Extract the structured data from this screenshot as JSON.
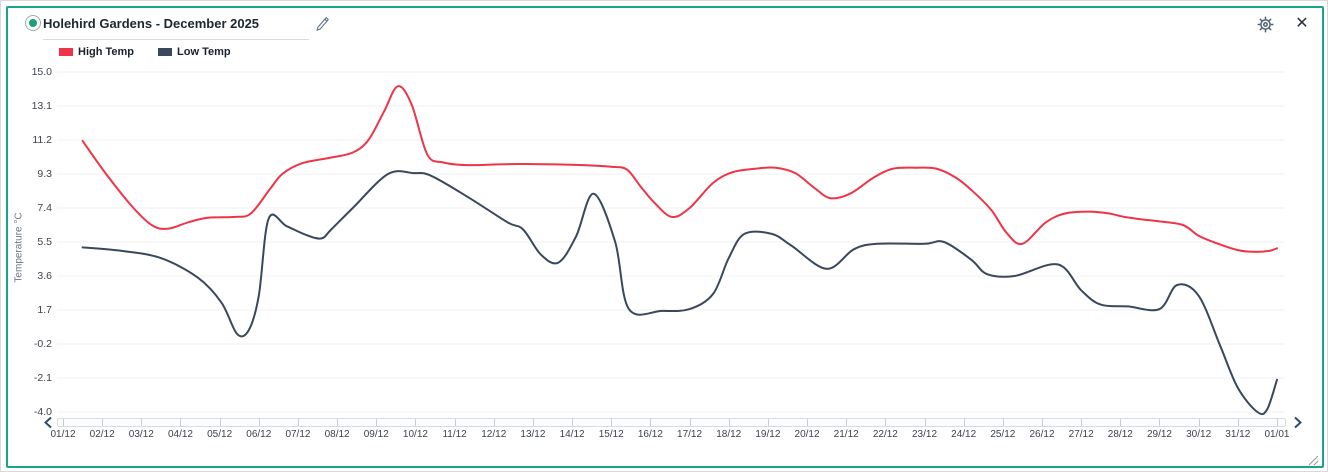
{
  "header": {
    "title": "Holehird Gardens - December 2025",
    "status_icon": {
      "name": "status-dot-icon",
      "ring_color": "#9aada8",
      "dot_color": "#18a07d"
    },
    "edit_icon": "pencil-icon",
    "settings_icon": "gear-icon",
    "close_icon": "close-icon"
  },
  "nav": {
    "prev_icon": "chevron-left-icon",
    "next_icon": "chevron-right-icon",
    "resize_icon": "resize-grip-icon"
  },
  "colors": {
    "card_border": "#17a68b",
    "grid_line": "#f0f0f0",
    "high_series": "#ee3548",
    "low_series": "#39485c",
    "axis_track": "#d5dbe8"
  },
  "chart_data": {
    "type": "line",
    "title": "Holehird Gardens - December 2025",
    "xlabel": "",
    "ylabel": "Temperature °C",
    "ylim": [
      -4.0,
      15.0
    ],
    "y_ticks": [
      15.0,
      13.1,
      11.2,
      9.3,
      7.4,
      5.5,
      3.6,
      1.7,
      -0.2,
      -2.1,
      -4.0
    ],
    "x_tick_labels": [
      "01/12",
      "02/12",
      "03/12",
      "04/12",
      "05/12",
      "06/12",
      "07/12",
      "08/12",
      "09/12",
      "10/12",
      "11/12",
      "12/12",
      "13/12",
      "14/12",
      "15/12",
      "16/12",
      "17/12",
      "18/12",
      "19/12",
      "20/12",
      "21/12",
      "22/12",
      "23/12",
      "24/12",
      "25/12",
      "26/12",
      "27/12",
      "28/12",
      "29/12",
      "30/12",
      "31/12",
      "01/01"
    ],
    "grid": "horizontal-only",
    "legend_position": "top-left",
    "x_unit": "day of month (1 = 01/12 tick, 32 = 01/01 tick; fractional x = intra-day curve samples read from plot)",
    "series": [
      {
        "name": "High Temp",
        "color": "#ee3548",
        "points": [
          [
            1.5,
            11.15
          ],
          [
            2.1,
            9.3
          ],
          [
            2.8,
            7.4
          ],
          [
            3.3,
            6.4
          ],
          [
            3.7,
            6.25
          ],
          [
            4.2,
            6.6
          ],
          [
            4.7,
            6.85
          ],
          [
            5.4,
            6.9
          ],
          [
            5.8,
            7.1
          ],
          [
            6.3,
            8.5
          ],
          [
            6.6,
            9.3
          ],
          [
            7.1,
            9.9
          ],
          [
            7.8,
            10.2
          ],
          [
            8.4,
            10.5
          ],
          [
            8.8,
            11.2
          ],
          [
            9.2,
            12.8
          ],
          [
            9.55,
            14.2
          ],
          [
            9.9,
            13.2
          ],
          [
            10.3,
            10.4
          ],
          [
            10.7,
            9.95
          ],
          [
            11.3,
            9.8
          ],
          [
            12.3,
            9.85
          ],
          [
            13.3,
            9.85
          ],
          [
            14.3,
            9.8
          ],
          [
            15.0,
            9.7
          ],
          [
            15.4,
            9.55
          ],
          [
            15.75,
            8.6
          ],
          [
            16.1,
            7.7
          ],
          [
            16.55,
            6.9
          ],
          [
            17.0,
            7.4
          ],
          [
            17.6,
            8.8
          ],
          [
            18.1,
            9.4
          ],
          [
            18.7,
            9.6
          ],
          [
            19.2,
            9.65
          ],
          [
            19.7,
            9.35
          ],
          [
            20.2,
            8.5
          ],
          [
            20.6,
            7.95
          ],
          [
            21.1,
            8.2
          ],
          [
            21.7,
            9.1
          ],
          [
            22.2,
            9.6
          ],
          [
            22.8,
            9.65
          ],
          [
            23.3,
            9.6
          ],
          [
            23.8,
            9.1
          ],
          [
            24.2,
            8.4
          ],
          [
            24.7,
            7.3
          ],
          [
            25.1,
            6.0
          ],
          [
            25.5,
            5.4
          ],
          [
            26.1,
            6.6
          ],
          [
            26.6,
            7.1
          ],
          [
            27.2,
            7.2
          ],
          [
            27.7,
            7.1
          ],
          [
            28.1,
            6.9
          ],
          [
            28.6,
            6.75
          ],
          [
            29.0,
            6.65
          ],
          [
            29.6,
            6.45
          ],
          [
            30.0,
            5.85
          ],
          [
            30.5,
            5.4
          ],
          [
            31.0,
            5.05
          ],
          [
            31.4,
            4.95
          ],
          [
            31.8,
            5.0
          ],
          [
            32,
            5.15
          ]
        ]
      },
      {
        "name": "Low Temp",
        "color": "#39485c",
        "points": [
          [
            1.5,
            5.2
          ],
          [
            2.5,
            5.0
          ],
          [
            3.5,
            4.6
          ],
          [
            4.45,
            3.5
          ],
          [
            5.05,
            2.1
          ],
          [
            5.45,
            0.35
          ],
          [
            5.75,
            0.6
          ],
          [
            6.0,
            2.5
          ],
          [
            6.25,
            6.8
          ],
          [
            6.7,
            6.4
          ],
          [
            7.2,
            5.9
          ],
          [
            7.6,
            5.7
          ],
          [
            7.85,
            6.2
          ],
          [
            8.4,
            7.4
          ],
          [
            9.3,
            9.3
          ],
          [
            9.95,
            9.35
          ],
          [
            10.4,
            9.2
          ],
          [
            11.35,
            8.0
          ],
          [
            12.35,
            6.6
          ],
          [
            12.75,
            6.2
          ],
          [
            13.2,
            4.8
          ],
          [
            13.65,
            4.35
          ],
          [
            14.1,
            5.8
          ],
          [
            14.55,
            8.2
          ],
          [
            15.1,
            5.5
          ],
          [
            15.45,
            1.75
          ],
          [
            16.3,
            1.65
          ],
          [
            17.0,
            1.75
          ],
          [
            17.6,
            2.6
          ],
          [
            18.0,
            4.6
          ],
          [
            18.4,
            5.95
          ],
          [
            19.1,
            5.95
          ],
          [
            19.6,
            5.3
          ],
          [
            20.5,
            4.0
          ],
          [
            21.2,
            5.1
          ],
          [
            21.8,
            5.4
          ],
          [
            23.0,
            5.4
          ],
          [
            23.5,
            5.5
          ],
          [
            24.2,
            4.5
          ],
          [
            24.6,
            3.7
          ],
          [
            25.3,
            3.6
          ],
          [
            26.4,
            4.25
          ],
          [
            27.0,
            2.8
          ],
          [
            27.5,
            2.0
          ],
          [
            28.2,
            1.9
          ],
          [
            29.0,
            1.75
          ],
          [
            29.45,
            3.1
          ],
          [
            30.0,
            2.5
          ],
          [
            30.55,
            -0.3
          ],
          [
            31.0,
            -2.65
          ],
          [
            31.5,
            -4.0
          ],
          [
            31.75,
            -3.85
          ],
          [
            32,
            -2.2
          ]
        ]
      }
    ]
  }
}
